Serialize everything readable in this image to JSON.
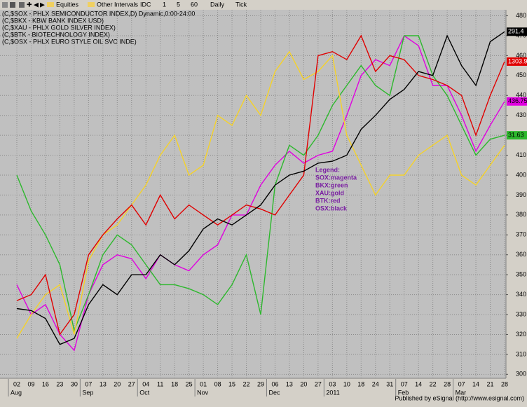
{
  "toolbar": [
    "Equities",
    "Other Intervals",
    "IDC",
    "1",
    "5",
    "60",
    "Daily",
    "Tick"
  ],
  "footer": "Published by eSignal (http://www.esignal.com)",
  "chart_data": {
    "type": "line",
    "categories": [
      "02",
      "09",
      "16",
      "23",
      "30",
      "07",
      "13",
      "20",
      "27",
      "04",
      "11",
      "18",
      "25",
      "01",
      "08",
      "15",
      "22",
      "29",
      "06",
      "13",
      "20",
      "27",
      "03",
      "10",
      "18",
      "24",
      "31",
      "07",
      "14",
      "22",
      "28",
      "07",
      "14",
      "21",
      "28"
    ],
    "category_groups": [
      "Aug",
      null,
      null,
      null,
      null,
      "Sep",
      null,
      null,
      null,
      "Oct",
      null,
      null,
      null,
      "Nov",
      null,
      null,
      null,
      null,
      "Dec",
      null,
      null,
      null,
      "2011",
      null,
      null,
      null,
      null,
      "Feb",
      null,
      null,
      null,
      "Mar",
      null,
      null,
      null
    ],
    "ylim": [
      298,
      483
    ],
    "yticks": [
      300,
      310,
      320,
      330,
      340,
      350,
      360,
      370,
      380,
      390,
      400,
      410,
      420,
      430,
      440,
      450,
      460,
      470,
      480
    ],
    "grid": true,
    "annotation": [
      "Legend:",
      "SOX:magenta",
      "BKX:green",
      "XAU:gold",
      "BTK:red",
      "OSX:black"
    ],
    "series": [
      {
        "name": "(C,$SOX - PHLX SEMICONDUCTOR INDEX,D) Dynamic,0:00-24:00",
        "color": "#e000e0",
        "last_label": "436.75",
        "values": [
          345,
          330,
          335,
          320,
          312,
          340,
          355,
          360,
          358,
          348,
          360,
          355,
          352,
          360,
          365,
          380,
          380,
          395,
          405,
          412,
          406,
          410,
          412,
          430,
          450,
          458,
          455,
          470,
          465,
          445,
          445,
          430,
          412,
          425,
          437
        ]
      },
      {
        "name": "(C,$BKX - KBW BANK INDEX USD)",
        "color": "#2db82d",
        "last_label": "31.63",
        "values": [
          400,
          382,
          370,
          355,
          322,
          340,
          360,
          370,
          365,
          355,
          345,
          345,
          343,
          340,
          335,
          345,
          360,
          330,
          395,
          415,
          410,
          420,
          435,
          445,
          455,
          445,
          440,
          470,
          470,
          450,
          440,
          425,
          410,
          418,
          420
        ]
      },
      {
        "name": "(C,$XAU - PHLX GOLD SILVER INDEX)",
        "color": "#f5d22a",
        "values": [
          318,
          330,
          340,
          345,
          320,
          357,
          370,
          375,
          385,
          395,
          410,
          420,
          400,
          405,
          430,
          425,
          440,
          430,
          452,
          462,
          448,
          452,
          460,
          420,
          405,
          390,
          400,
          400,
          410,
          415,
          420,
          400,
          395,
          405,
          415
        ]
      },
      {
        "name": "(C,$BTK - BIOTECHNOLOGY INDEX)",
        "color": "#e00000",
        "last_label": "1303.91",
        "values": [
          337,
          340,
          350,
          320,
          330,
          360,
          370,
          378,
          385,
          375,
          390,
          378,
          385,
          380,
          375,
          380,
          385,
          383,
          380,
          390,
          400,
          460,
          462,
          458,
          470,
          452,
          460,
          458,
          450,
          448,
          445,
          440,
          420,
          440,
          457
        ]
      },
      {
        "name": "(C,$OSX - PHLX EURO STYLE OIL SVC INDE)",
        "color": "#000000",
        "last_label": "291.4",
        "values": [
          333,
          332,
          328,
          315,
          318,
          335,
          345,
          340,
          350,
          350,
          360,
          355,
          362,
          373,
          378,
          375,
          380,
          385,
          395,
          400,
          402,
          406,
          407,
          410,
          423,
          430,
          438,
          443,
          452,
          450,
          470,
          455,
          445,
          467,
          472
        ]
      }
    ]
  }
}
